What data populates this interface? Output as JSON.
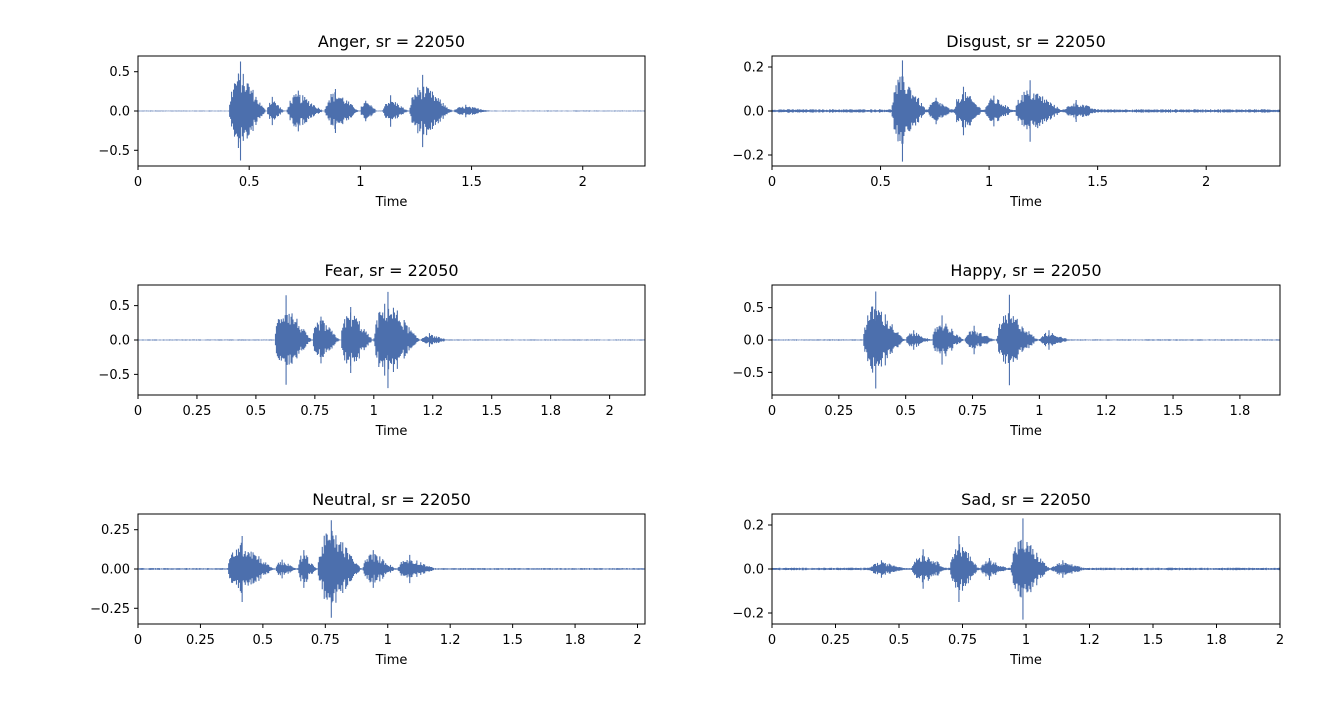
{
  "figure": {
    "background": "#ffffff",
    "wave_color": "#4c6fad"
  },
  "chart_data": [
    {
      "type": "line",
      "title": "Anger, sr = 22050",
      "xlabel": "Time",
      "ylabel": "",
      "xlim": [
        0,
        2.28
      ],
      "ylim": [
        -0.7,
        0.7
      ],
      "xticks": [
        0,
        0.5,
        1,
        1.5,
        2
      ],
      "xtick_labels": [
        "0",
        "0.5",
        "1",
        "1.5",
        "2"
      ],
      "yticks": [
        0.5,
        0,
        -0.5
      ],
      "ytick_labels": [
        "0.5",
        "0.0",
        "−0.5"
      ],
      "noise": 0.006,
      "grid": false,
      "series": [
        {
          "bursts": [
            {
              "start": 0.41,
              "end": 0.58,
              "peak": 0.5,
              "max": 0.63
            },
            {
              "start": 0.58,
              "end": 0.66,
              "peak": 0.15,
              "max": 0.18
            },
            {
              "start": 0.67,
              "end": 0.84,
              "peak": 0.22,
              "max": 0.26
            },
            {
              "start": 0.84,
              "end": 1.0,
              "peak": 0.25,
              "max": 0.28
            },
            {
              "start": 1.0,
              "end": 1.08,
              "peak": 0.12,
              "max": 0.13
            },
            {
              "start": 1.1,
              "end": 1.22,
              "peak": 0.15,
              "max": 0.2
            },
            {
              "start": 1.22,
              "end": 1.42,
              "peak": 0.33,
              "max": 0.46
            },
            {
              "start": 1.42,
              "end": 1.6,
              "peak": 0.06,
              "max": 0.08
            }
          ]
        }
      ]
    },
    {
      "type": "line",
      "title": "Disgust, sr = 22050",
      "xlabel": "Time",
      "ylabel": "",
      "xlim": [
        0,
        2.34
      ],
      "ylim": [
        -0.25,
        0.25
      ],
      "xticks": [
        0,
        0.5,
        1,
        1.5,
        2
      ],
      "xtick_labels": [
        "0",
        "0.5",
        "1",
        "1.5",
        "2"
      ],
      "yticks": [
        0.2,
        0,
        -0.2
      ],
      "ytick_labels": [
        "0.2",
        "0.0",
        "−0.2"
      ],
      "noise": 0.008,
      "grid": false,
      "series": [
        {
          "bursts": [
            {
              "start": 0.55,
              "end": 0.72,
              "peak": 0.16,
              "max": 0.23
            },
            {
              "start": 0.72,
              "end": 0.84,
              "peak": 0.05,
              "max": 0.06
            },
            {
              "start": 0.84,
              "end": 0.98,
              "peak": 0.09,
              "max": 0.11
            },
            {
              "start": 0.98,
              "end": 1.12,
              "peak": 0.06,
              "max": 0.07
            },
            {
              "start": 1.12,
              "end": 1.35,
              "peak": 0.1,
              "max": 0.14
            },
            {
              "start": 1.35,
              "end": 1.52,
              "peak": 0.04,
              "max": 0.05
            }
          ]
        }
      ]
    },
    {
      "type": "line",
      "title": "Fear, sr = 22050",
      "xlabel": "Time",
      "ylabel": "",
      "xlim": [
        0,
        2.15
      ],
      "ylim": [
        -0.8,
        0.8
      ],
      "xticks": [
        0,
        0.25,
        0.5,
        0.75,
        1,
        1.25,
        1.5,
        1.75,
        2
      ],
      "xtick_labels": [
        "0",
        "0.25",
        "0.5",
        "0.75",
        "1",
        "1.2",
        "1.5",
        "1.8",
        "2"
      ],
      "yticks": [
        0.5,
        0,
        -0.5
      ],
      "ytick_labels": [
        "0.5",
        "0.0",
        "−0.5"
      ],
      "noise": 0.008,
      "grid": false,
      "series": [
        {
          "bursts": [
            {
              "start": 0.58,
              "end": 0.74,
              "peak": 0.5,
              "max": 0.65
            },
            {
              "start": 0.74,
              "end": 0.86,
              "peak": 0.3,
              "max": 0.34
            },
            {
              "start": 0.86,
              "end": 1.0,
              "peak": 0.42,
              "max": 0.48
            },
            {
              "start": 1.0,
              "end": 1.2,
              "peak": 0.55,
              "max": 0.7
            },
            {
              "start": 1.2,
              "end": 1.32,
              "peak": 0.08,
              "max": 0.1
            }
          ]
        }
      ]
    },
    {
      "type": "line",
      "title": "Happy, sr = 22050",
      "xlabel": "Time",
      "ylabel": "",
      "xlim": [
        0,
        1.9
      ],
      "ylim": [
        -0.85,
        0.85
      ],
      "xticks": [
        0,
        0.25,
        0.5,
        0.75,
        1,
        1.25,
        1.5,
        1.75
      ],
      "xtick_labels": [
        "0",
        "0.25",
        "0.5",
        "0.75",
        "1",
        "1.2",
        "1.5",
        "1.8"
      ],
      "yticks": [
        0.5,
        0,
        -0.5
      ],
      "ytick_labels": [
        "0.5",
        "0.0",
        "−0.5"
      ],
      "noise": 0.01,
      "grid": false,
      "series": [
        {
          "bursts": [
            {
              "start": 0.34,
              "end": 0.5,
              "peak": 0.55,
              "max": 0.75
            },
            {
              "start": 0.5,
              "end": 0.6,
              "peak": 0.12,
              "max": 0.15
            },
            {
              "start": 0.6,
              "end": 0.72,
              "peak": 0.3,
              "max": 0.38
            },
            {
              "start": 0.72,
              "end": 0.84,
              "peak": 0.15,
              "max": 0.22
            },
            {
              "start": 0.84,
              "end": 1.0,
              "peak": 0.42,
              "max": 0.7
            },
            {
              "start": 1.0,
              "end": 1.12,
              "peak": 0.12,
              "max": 0.15
            }
          ]
        }
      ]
    },
    {
      "type": "line",
      "title": "Neutral, sr = 22050",
      "xlabel": "Time",
      "ylabel": "",
      "xlim": [
        0,
        2.03
      ],
      "ylim": [
        -0.35,
        0.35
      ],
      "xticks": [
        0,
        0.25,
        0.5,
        0.75,
        1,
        1.25,
        1.5,
        1.75,
        2
      ],
      "xtick_labels": [
        "0",
        "0.25",
        "0.5",
        "0.75",
        "1",
        "1.2",
        "1.5",
        "1.8",
        "2"
      ],
      "yticks": [
        0.25,
        0,
        -0.25
      ],
      "ytick_labels": [
        "0.25",
        "0.00",
        "−0.25"
      ],
      "noise": 0.006,
      "grid": false,
      "series": [
        {
          "bursts": [
            {
              "start": 0.36,
              "end": 0.55,
              "peak": 0.17,
              "max": 0.21
            },
            {
              "start": 0.55,
              "end": 0.64,
              "peak": 0.05,
              "max": 0.06
            },
            {
              "start": 0.64,
              "end": 0.72,
              "peak": 0.1,
              "max": 0.12
            },
            {
              "start": 0.72,
              "end": 0.9,
              "peak": 0.25,
              "max": 0.31
            },
            {
              "start": 0.9,
              "end": 1.04,
              "peak": 0.1,
              "max": 0.12
            },
            {
              "start": 1.04,
              "end": 1.2,
              "peak": 0.07,
              "max": 0.09
            }
          ]
        }
      ]
    },
    {
      "type": "line",
      "title": "Sad, sr = 22050",
      "xlabel": "Time",
      "ylabel": "",
      "xlim": [
        0,
        2.0
      ],
      "ylim": [
        -0.25,
        0.25
      ],
      "xticks": [
        0,
        0.25,
        0.5,
        0.75,
        1,
        1.25,
        1.5,
        1.75,
        2
      ],
      "xtick_labels": [
        "0",
        "0.25",
        "0.5",
        "0.75",
        "1",
        "1.2",
        "1.5",
        "1.8",
        "2"
      ],
      "yticks": [
        0.2,
        0,
        -0.2
      ],
      "ytick_labels": [
        "0.2",
        "0.0",
        "−0.2"
      ],
      "noise": 0.006,
      "grid": false,
      "series": [
        {
          "bursts": [
            {
              "start": 0.38,
              "end": 0.55,
              "peak": 0.03,
              "max": 0.04
            },
            {
              "start": 0.55,
              "end": 0.7,
              "peak": 0.07,
              "max": 0.09
            },
            {
              "start": 0.7,
              "end": 0.82,
              "peak": 0.12,
              "max": 0.15
            },
            {
              "start": 0.82,
              "end": 0.94,
              "peak": 0.04,
              "max": 0.05
            },
            {
              "start": 0.94,
              "end": 1.1,
              "peak": 0.14,
              "max": 0.23
            },
            {
              "start": 1.1,
              "end": 1.25,
              "peak": 0.03,
              "max": 0.04
            }
          ]
        }
      ]
    }
  ]
}
